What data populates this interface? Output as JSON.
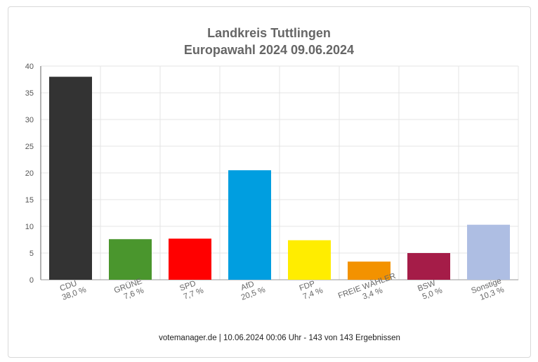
{
  "chart_data": {
    "type": "bar",
    "title": "Landkreis Tuttlingen",
    "subtitle": "Europawahl 2024 09.06.2024",
    "categories": [
      "CDU",
      "GRÜNE",
      "SPD",
      "AfD",
      "FDP",
      "FREIE WÄHLER",
      "BSW",
      "Sonstige"
    ],
    "values": [
      38.0,
      7.6,
      7.7,
      20.5,
      7.4,
      3.4,
      5.0,
      10.3
    ],
    "value_labels": [
      "38,0 %",
      "7,6 %",
      "7,7 %",
      "20,5 %",
      "7,4 %",
      "3,4 %",
      "5,0 %",
      "10,3 %"
    ],
    "colors": [
      "#333333",
      "#4a962d",
      "#ff0000",
      "#009ee0",
      "#ffed00",
      "#f39200",
      "#a51c48",
      "#aebee3"
    ],
    "ylim": [
      0,
      40
    ],
    "yticks": [
      0,
      5,
      10,
      15,
      20,
      25,
      30,
      35,
      40
    ],
    "grid": true,
    "legend": "none"
  },
  "footer": "votemanager.de | 10.06.2024 00:06 Uhr - 143 von 143 Ergebnissen"
}
